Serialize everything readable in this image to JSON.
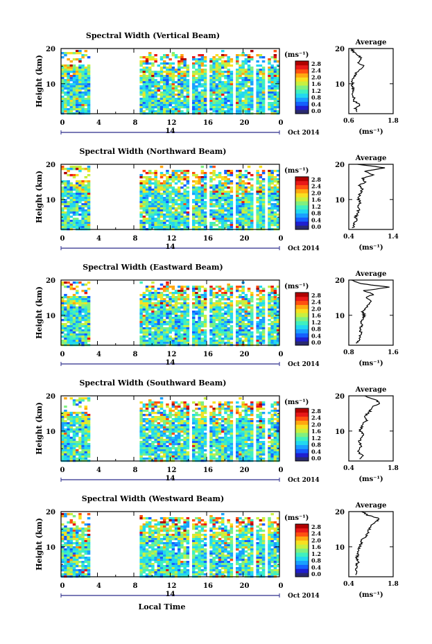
{
  "colorbar": {
    "unit": "(ms⁻¹)",
    "ticks": [
      "2.8",
      "2.4",
      "2.0",
      "1.6",
      "1.2",
      "0.8",
      "0.4",
      "0.0"
    ],
    "colors": [
      "#2a2a6e",
      "#1f1fd0",
      "#1560ff",
      "#1aa0ff",
      "#22d8f0",
      "#3ff0c0",
      "#80f080",
      "#c8f040",
      "#f8e020",
      "#ffa810",
      "#ff5010",
      "#e81818",
      "#b00000"
    ]
  },
  "common": {
    "x_ticks": [
      "0",
      "4",
      "8",
      "12",
      "16",
      "20",
      "0"
    ],
    "date_tick": "14",
    "date_label": "Oct 2014",
    "y_ticks": [
      "20",
      "10"
    ],
    "ylabel": "Height (km)",
    "avg_title": "Average",
    "avg_xlabel": "(ms⁻¹)",
    "xlabel": "Local Time"
  },
  "chart_data": [
    {
      "type": "heatmap",
      "title": "Spectral Width (Vertical Beam)",
      "x_range_hours": [
        0,
        24
      ],
      "y_range_km": [
        1.5,
        20
      ],
      "data_gaps_hours": [
        [
          3.2,
          8.4
        ],
        [
          13.8,
          14.3
        ],
        [
          15.7,
          16.2
        ],
        [
          18.7,
          19.1
        ],
        [
          20.8,
          21.3
        ],
        [
          22.1,
          22.6
        ]
      ],
      "profile": {
        "type": "line",
        "title": "Average",
        "xlim": [
          0.6,
          1.8
        ],
        "x_ticks": [
          "0.6",
          "1.8"
        ],
        "height_km": [
          2,
          3,
          4,
          5,
          6,
          7,
          8,
          9,
          10,
          11,
          12,
          13,
          14,
          15,
          16,
          17,
          18,
          19,
          20
        ],
        "values": [
          0.85,
          0.78,
          0.9,
          0.75,
          0.74,
          0.72,
          0.72,
          0.71,
          0.7,
          0.7,
          0.74,
          0.8,
          0.9,
          1.02,
          0.82,
          0.95,
          0.86,
          0.72,
          0.68
        ]
      }
    },
    {
      "type": "heatmap",
      "title": "Spectral Width (Northward Beam)",
      "x_range_hours": [
        0,
        24
      ],
      "y_range_km": [
        1.5,
        20
      ],
      "data_gaps_hours": [
        [
          3.2,
          8.4
        ],
        [
          13.8,
          14.3
        ],
        [
          15.7,
          16.2
        ],
        [
          18.7,
          19.1
        ],
        [
          20.8,
          21.3
        ],
        [
          22.1,
          22.6
        ]
      ],
      "profile": {
        "type": "line",
        "title": "Average",
        "xlim": [
          0.4,
          1.4
        ],
        "x_ticks": [
          "0.4",
          "1.4"
        ],
        "height_km": [
          2,
          3,
          4,
          5,
          6,
          7,
          8,
          9,
          10,
          11,
          12,
          13,
          14,
          15,
          16,
          17,
          18,
          19,
          20
        ],
        "values": [
          0.5,
          0.52,
          0.58,
          0.55,
          0.6,
          0.62,
          0.6,
          0.66,
          0.62,
          0.64,
          0.66,
          0.72,
          0.62,
          0.78,
          0.7,
          0.95,
          0.75,
          1.2,
          0.6
        ]
      }
    },
    {
      "type": "heatmap",
      "title": "Spectral Width (Eastward Beam)",
      "x_range_hours": [
        0,
        24
      ],
      "y_range_km": [
        1.5,
        20
      ],
      "data_gaps_hours": [
        [
          3.2,
          8.4
        ],
        [
          13.8,
          14.3
        ],
        [
          15.7,
          16.2
        ],
        [
          18.7,
          19.1
        ],
        [
          20.8,
          21.3
        ],
        [
          22.1,
          22.6
        ]
      ],
      "profile": {
        "type": "line",
        "title": "Average",
        "xlim": [
          0.8,
          1.6
        ],
        "x_ticks": [
          "0.8",
          "1.6"
        ],
        "height_km": [
          2,
          3,
          4,
          5,
          6,
          7,
          8,
          9,
          10,
          11,
          12,
          13,
          14,
          15,
          16,
          17,
          18,
          19,
          20
        ],
        "values": [
          0.95,
          0.98,
          1.0,
          1.02,
          1.0,
          1.04,
          1.02,
          1.06,
          1.08,
          1.05,
          1.1,
          1.15,
          1.2,
          1.1,
          1.25,
          1.08,
          1.55,
          1.0,
          0.85
        ]
      }
    },
    {
      "type": "heatmap",
      "title": "Spectral Width (Southward Beam)",
      "x_range_hours": [
        0,
        24
      ],
      "y_range_km": [
        1.5,
        20
      ],
      "data_gaps_hours": [
        [
          3.2,
          8.4
        ],
        [
          13.8,
          14.3
        ],
        [
          15.7,
          16.2
        ],
        [
          18.7,
          19.1
        ],
        [
          20.8,
          21.3
        ],
        [
          22.1,
          22.6
        ]
      ],
      "profile": {
        "type": "line",
        "title": "Average",
        "xlim": [
          0.4,
          1.8
        ],
        "x_ticks": [
          "0.4",
          "1.8"
        ],
        "height_km": [
          2,
          3,
          4,
          5,
          6,
          7,
          8,
          9,
          10,
          11,
          12,
          13,
          14,
          15,
          16,
          17,
          18,
          19,
          20
        ],
        "values": [
          0.72,
          0.85,
          0.7,
          0.75,
          0.78,
          0.72,
          0.8,
          0.85,
          0.76,
          0.8,
          0.82,
          0.95,
          0.9,
          1.0,
          1.1,
          1.15,
          1.4,
          1.2,
          0.9
        ]
      }
    },
    {
      "type": "heatmap",
      "title": "Spectral Width (Westward Beam)",
      "x_range_hours": [
        0,
        24
      ],
      "y_range_km": [
        1.5,
        20
      ],
      "data_gaps_hours": [
        [
          3.2,
          8.4
        ],
        [
          13.8,
          14.3
        ],
        [
          15.7,
          16.2
        ],
        [
          18.7,
          19.1
        ],
        [
          20.8,
          21.3
        ],
        [
          22.1,
          22.6
        ]
      ],
      "profile": {
        "type": "line",
        "title": "Average",
        "xlim": [
          0.4,
          1.8
        ],
        "x_ticks": [
          "0.4",
          "1.8"
        ],
        "height_km": [
          2,
          3,
          4,
          5,
          6,
          7,
          8,
          9,
          10,
          11,
          12,
          13,
          14,
          15,
          16,
          17,
          18,
          19,
          20
        ],
        "values": [
          0.62,
          0.65,
          0.62,
          0.66,
          0.7,
          0.66,
          0.7,
          0.72,
          0.74,
          0.78,
          0.8,
          0.95,
          1.0,
          1.05,
          1.1,
          1.25,
          1.35,
          1.0,
          0.8
        ]
      }
    }
  ]
}
